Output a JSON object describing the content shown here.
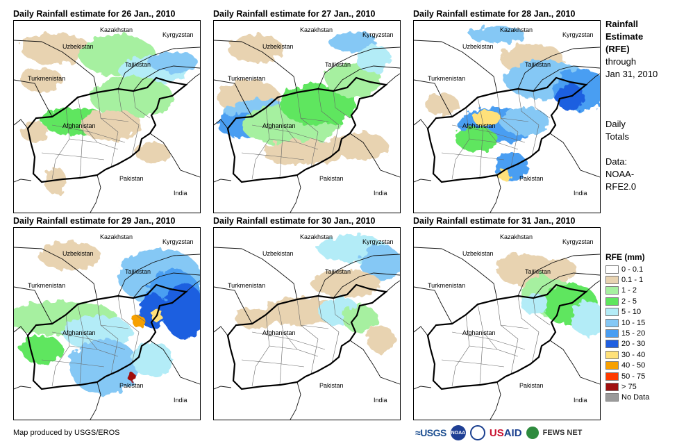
{
  "panels": [
    {
      "title": "Daily Rainfall estimate for 26 Jan., 2010"
    },
    {
      "title": "Daily Rainfall estimate for 27 Jan., 2010"
    },
    {
      "title": "Daily Rainfall estimate for 28 Jan., 2010"
    },
    {
      "title": "Daily Rainfall estimate for 29 Jan., 2010"
    },
    {
      "title": "Daily Rainfall estimate for 30 Jan., 2010"
    },
    {
      "title": "Daily Rainfall estimate for 31 Jan., 2010"
    }
  ],
  "country_labels": {
    "kazakhstan": "Kazakhstan",
    "kyrgyzstan": "Kyrgyzstan",
    "uzbekistan": "Uzbekistan",
    "tajikistan": "Tajikistan",
    "turkmenistan": "Turkmenistan",
    "afghanistan": "Afghanistan",
    "pakistan": "Pakistan",
    "india": "India"
  },
  "sidebar": {
    "title_line1": "Rainfall",
    "title_line2": "Estimate",
    "title_line3": "(RFE)",
    "through": "through",
    "date": "Jan 31, 2010",
    "daily1": "Daily",
    "daily2": "Totals",
    "data1": "Data:",
    "data2": "NOAA-",
    "data3": "RFE2.0"
  },
  "legend": {
    "title": "RFE (mm)",
    "items": [
      {
        "label": "0 - 0.1",
        "color": "#ffffff"
      },
      {
        "label": "0.1 - 1",
        "color": "#e8d3b1"
      },
      {
        "label": "1 - 2",
        "color": "#a6f0a0"
      },
      {
        "label": "2 - 5",
        "color": "#5ee65e"
      },
      {
        "label": "5 - 10",
        "color": "#b3ecf7"
      },
      {
        "label": "10 - 15",
        "color": "#85c8f5"
      },
      {
        "label": "15 - 20",
        "color": "#4a9ef2"
      },
      {
        "label": "20 - 30",
        "color": "#1f5fe0"
      },
      {
        "label": "30 - 40",
        "color": "#ffe17a"
      },
      {
        "label": "40 - 50",
        "color": "#f7a000"
      },
      {
        "label": "50 - 75",
        "color": "#ff3b00"
      },
      {
        "label": "> 75",
        "color": "#a01010"
      },
      {
        "label": "No Data",
        "color": "#9a9a9a"
      }
    ]
  },
  "footer": {
    "credit": "Map produced by USGS/EROS",
    "logo_usgs": "USGS",
    "logo_noaa": "NOAA",
    "logo_usaid_a": "US",
    "logo_usaid_b": "AID",
    "logo_fews": "FEWS NET"
  }
}
